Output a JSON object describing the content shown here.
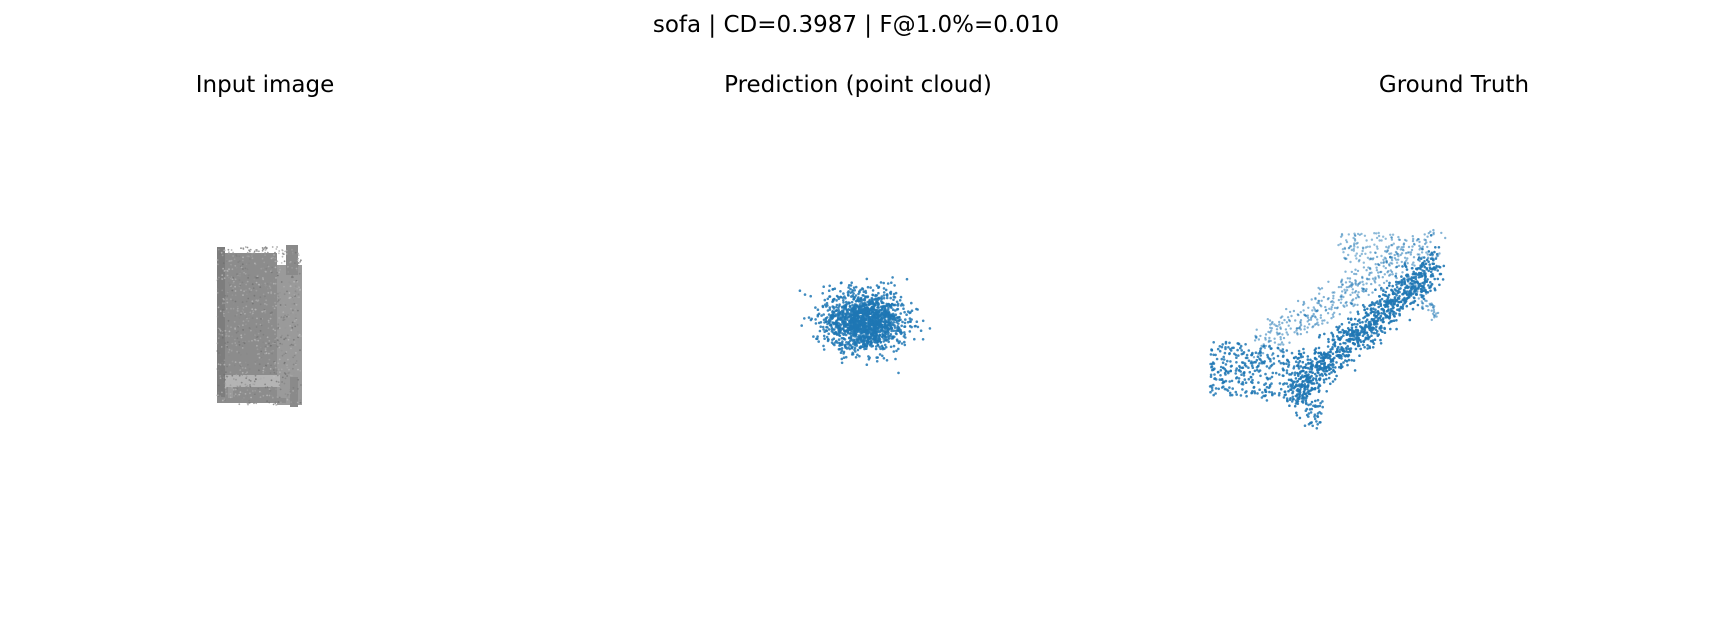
{
  "figure": {
    "title": "sofa | CD=0.3987 | F@1.0%=0.010"
  },
  "panels": [
    {
      "title": "Input image"
    },
    {
      "title": "Prediction (point cloud)"
    },
    {
      "title": "Ground Truth"
    }
  ],
  "chart_data": [
    {
      "type": "image",
      "title": "Input image",
      "content": "grayscale rendered sofa",
      "color": "#8c8c8c",
      "grid": false,
      "axes": "off"
    },
    {
      "type": "scatter",
      "title": "Prediction (point cloud)",
      "distribution": "isotropic gaussian blob",
      "center": [
        0,
        0
      ],
      "std": [
        0.3,
        0.22
      ],
      "num_points": 1600,
      "point_color": "#1f77b4",
      "grid": false,
      "axes": "off"
    },
    {
      "type": "scatter",
      "title": "Ground Truth",
      "shape": "sofa (diagonal seat, back, armrests)",
      "num_points": 2000,
      "point_color": "#1f77b4",
      "grid": false,
      "axes": "off"
    }
  ]
}
